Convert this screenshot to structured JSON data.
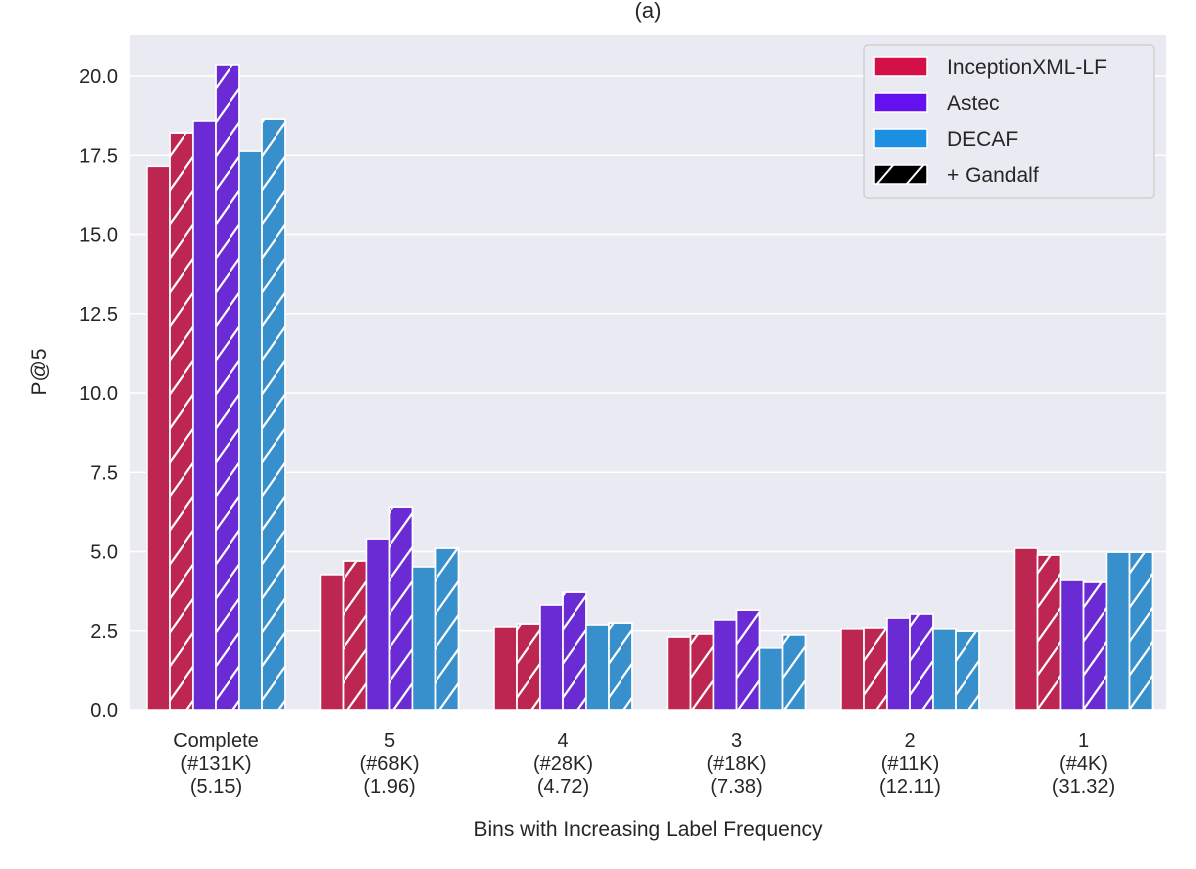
{
  "chart_data": {
    "type": "bar",
    "title": "(a)",
    "xlabel": "Bins with Increasing Label Frequency",
    "ylabel": "P@5",
    "ylim": [
      0,
      21.3
    ],
    "yticks": [
      "0.0",
      "2.5",
      "5.0",
      "7.5",
      "10.0",
      "12.5",
      "15.0",
      "17.5",
      "20.0"
    ],
    "grid": true,
    "legend_placement": "top-right",
    "categories": [
      [
        "Complete",
        "(#131K)",
        "(5.15)"
      ],
      [
        "5",
        "(#68K)",
        "(1.96)"
      ],
      [
        "4",
        "(#28K)",
        "(4.72)"
      ],
      [
        "3",
        "(#18K)",
        "(7.38)"
      ],
      [
        "2",
        "(#11K)",
        "(12.11)"
      ],
      [
        "1",
        "(#4K)",
        "(31.32)"
      ]
    ],
    "series": [
      {
        "name": "InceptionXML-LF",
        "hatched": false,
        "color": "#bc2651",
        "values": [
          17.15,
          4.26,
          2.62,
          2.3,
          2.56,
          5.11
        ]
      },
      {
        "name": "InceptionXML-LF + Gandalf",
        "hatched": true,
        "color": "#bc2651",
        "values": [
          18.2,
          4.7,
          2.71,
          2.4,
          2.59,
          4.89
        ]
      },
      {
        "name": "Astec",
        "hatched": false,
        "color": "#6a2bd4",
        "values": [
          18.58,
          5.39,
          3.31,
          2.84,
          2.9,
          4.1
        ]
      },
      {
        "name": "Astec + Gandalf",
        "hatched": true,
        "color": "#6a2bd4",
        "values": [
          20.35,
          6.4,
          3.72,
          3.15,
          3.03,
          4.04
        ]
      },
      {
        "name": "DECAF",
        "hatched": false,
        "color": "#378fcc",
        "values": [
          17.63,
          4.51,
          2.68,
          1.96,
          2.56,
          4.98
        ]
      },
      {
        "name": "DECAF + Gandalf",
        "hatched": true,
        "color": "#378fcc",
        "values": [
          18.64,
          5.11,
          2.74,
          2.37,
          2.49,
          4.98
        ]
      }
    ],
    "legend": [
      {
        "label": "InceptionXML-LF",
        "color": "#d31047",
        "hatched": false
      },
      {
        "label": "Astec",
        "color": "#6311ee",
        "hatched": false
      },
      {
        "label": "DECAF",
        "color": "#1c8fe3",
        "hatched": false
      },
      {
        "label": "+ Gandalf",
        "color": "#000000",
        "hatched": true
      }
    ],
    "colors": {
      "background": "#eaeaf2",
      "grid": "#ffffff"
    }
  }
}
